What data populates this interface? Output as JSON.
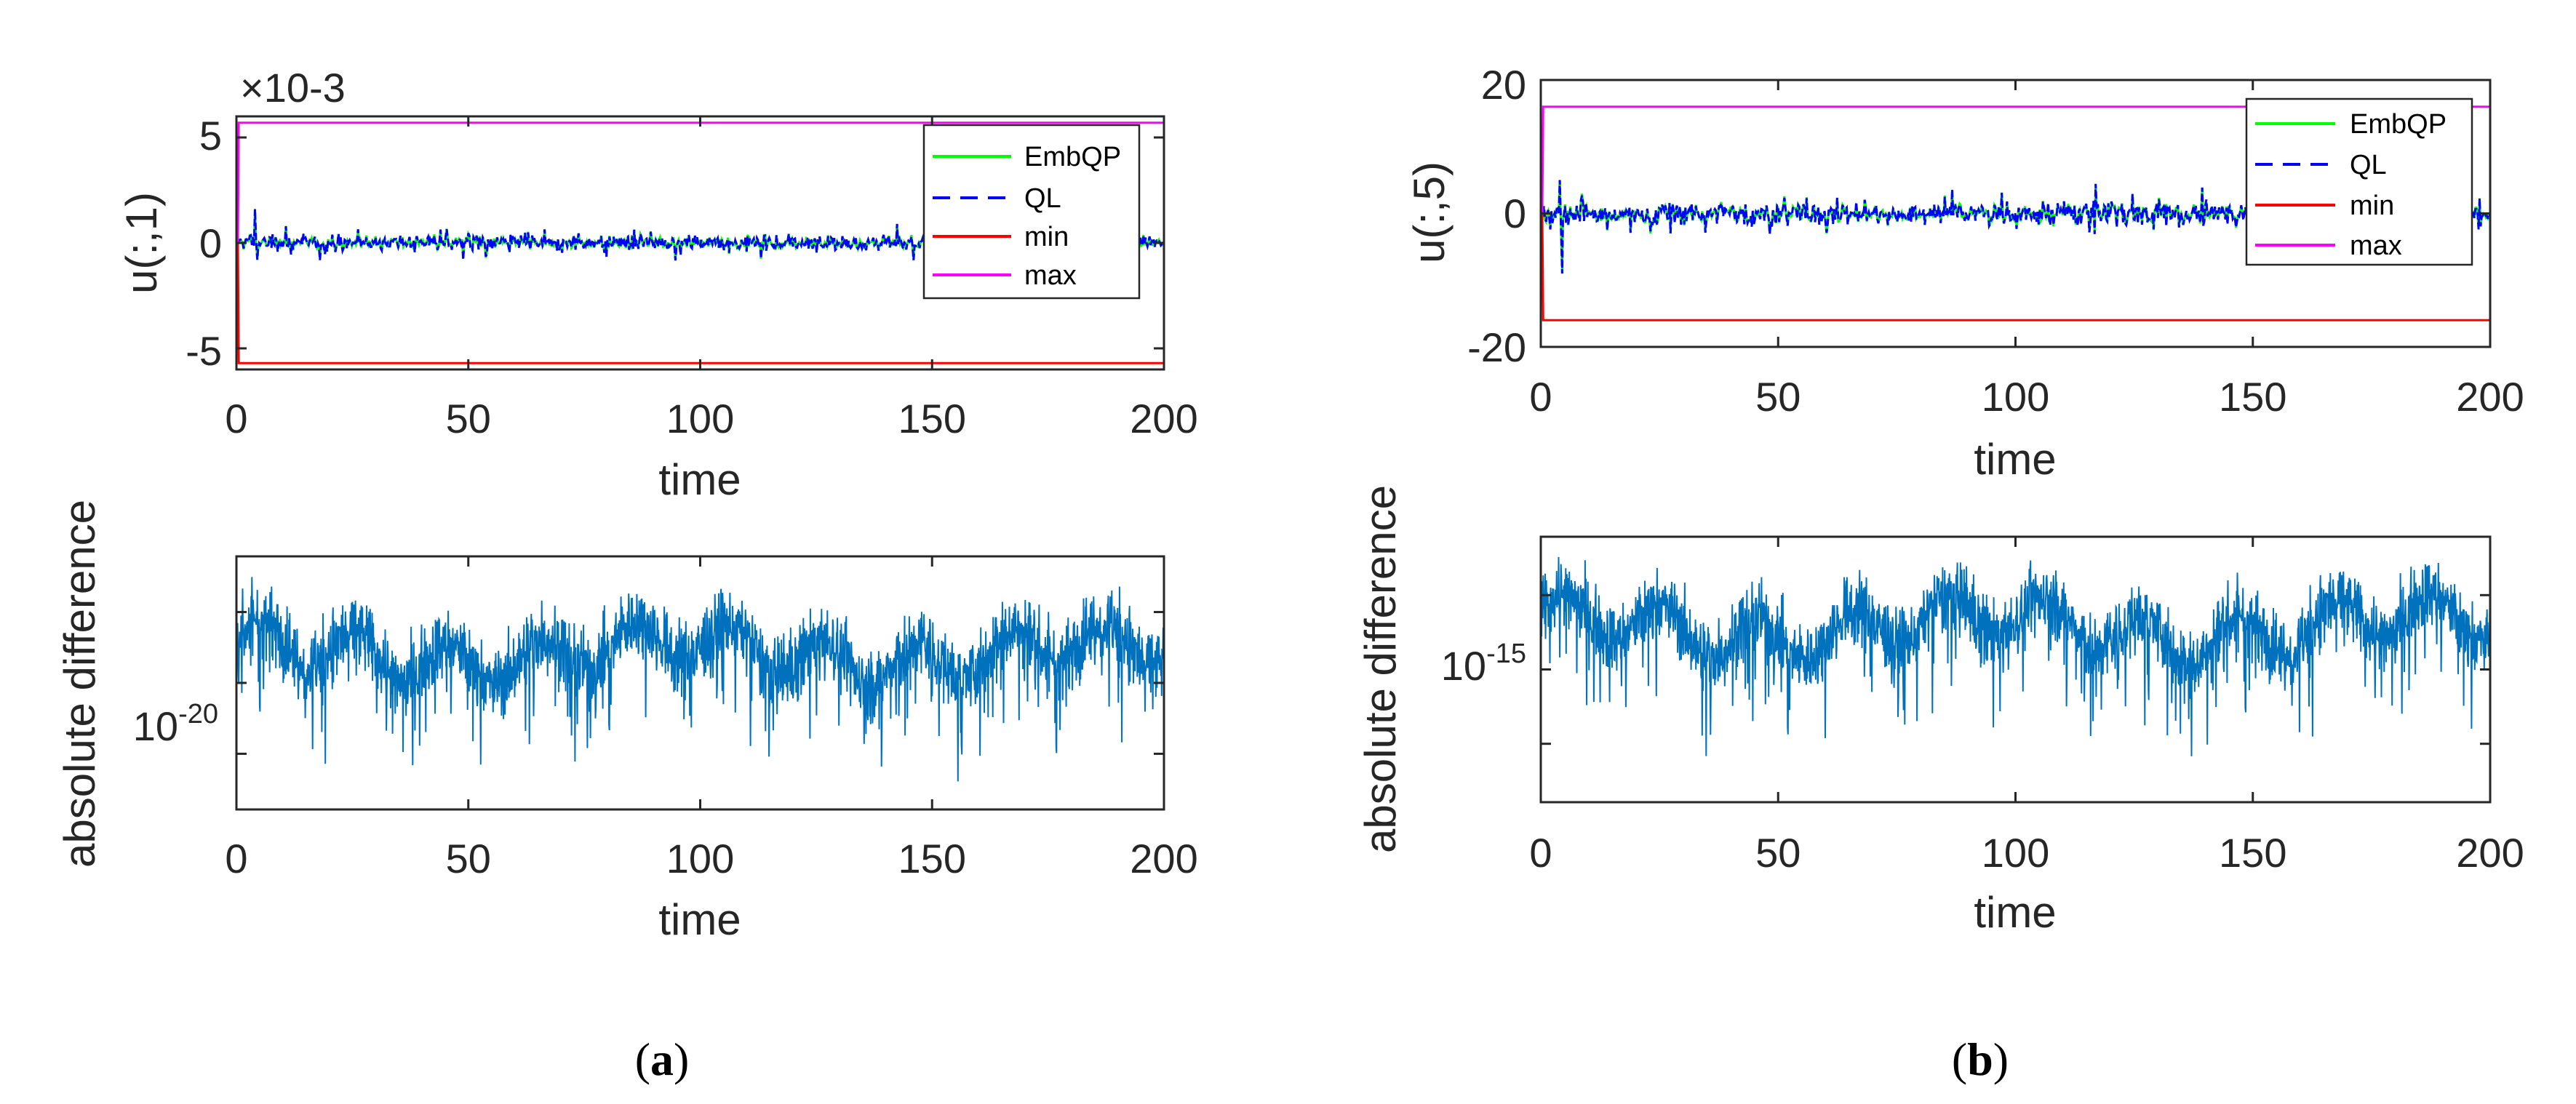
{
  "chart_data": [
    {
      "type": "line",
      "panel": "a",
      "position": "top",
      "title": "",
      "xlabel": "time",
      "ylabel": "u(:,1)",
      "y_exponent_label": "×10-3",
      "xlim": [
        0,
        200
      ],
      "ylim": [
        -6,
        6
      ],
      "xticks": [
        0,
        50,
        100,
        150,
        200
      ],
      "xtick_labels": [
        "0",
        "50",
        "100",
        "150",
        "200"
      ],
      "yticks": [
        -5,
        0,
        5
      ],
      "ytick_labels": [
        "-5",
        "0",
        "5"
      ],
      "legend": {
        "location": "top-right",
        "entries": [
          "EmbQP",
          "QL",
          "min",
          "max"
        ]
      },
      "series": [
        {
          "name": "EmbQP",
          "color": "#00ff00",
          "style": "solid",
          "description": "control trajectory oscillating near 0",
          "approx_range": [
            -0.8,
            0.9
          ],
          "initial_spike": 1.6
        },
        {
          "name": "QL",
          "color": "#0000ff",
          "style": "dashed",
          "description": "control trajectory oscillating near 0",
          "approx_range": [
            -0.8,
            0.9
          ],
          "initial_spike": 1.6
        },
        {
          "name": "min",
          "color": "#ff0000",
          "style": "solid",
          "value": -5.7
        },
        {
          "name": "max",
          "color": "#ff00ff",
          "style": "solid",
          "value": 5.7
        }
      ]
    },
    {
      "type": "line",
      "panel": "a",
      "position": "bottom",
      "title": "",
      "xlabel": "time",
      "ylabel": "absolute difference",
      "yscale": "log",
      "xlim": [
        0,
        200
      ],
      "xticks": [
        0,
        50,
        100,
        150,
        200
      ],
      "xtick_labels": [
        "0",
        "50",
        "100",
        "150",
        "200"
      ],
      "ytick_labels": [
        {
          "base": "10",
          "exponent": "-20"
        }
      ],
      "series": [
        {
          "name": "absolute difference",
          "color": "#0072bd",
          "description": "dense noisy signal around 1e-19"
        }
      ]
    },
    {
      "type": "line",
      "panel": "b",
      "position": "top",
      "title": "",
      "xlabel": "time",
      "ylabel": "u(:,5)",
      "xlim": [
        0,
        200
      ],
      "ylim": [
        -20,
        20
      ],
      "xticks": [
        0,
        50,
        100,
        150,
        200
      ],
      "xtick_labels": [
        "0",
        "50",
        "100",
        "150",
        "200"
      ],
      "yticks": [
        -20,
        0,
        20
      ],
      "ytick_labels": [
        "-20",
        "0",
        "20"
      ],
      "legend": {
        "location": "top-right",
        "entries": [
          "EmbQP",
          "QL",
          "min",
          "max"
        ]
      },
      "series": [
        {
          "name": "EmbQP",
          "color": "#00ff00",
          "style": "solid",
          "description": "control trajectory oscillating near 0",
          "approx_range": [
            -3,
            5
          ]
        },
        {
          "name": "QL",
          "color": "#0000ff",
          "style": "dashed",
          "description": "control trajectory oscillating near 0",
          "approx_range": [
            -9,
            5
          ]
        },
        {
          "name": "min",
          "color": "#ff0000",
          "style": "solid",
          "value": -16
        },
        {
          "name": "max",
          "color": "#ff00ff",
          "style": "solid",
          "value": 16
        }
      ]
    },
    {
      "type": "line",
      "panel": "b",
      "position": "bottom",
      "title": "",
      "xlabel": "time",
      "ylabel": "absolute difference",
      "yscale": "log",
      "xlim": [
        0,
        200
      ],
      "xticks": [
        0,
        50,
        100,
        150,
        200
      ],
      "xtick_labels": [
        "0",
        "50",
        "100",
        "150",
        "200"
      ],
      "ytick_labels": [
        {
          "base": "10",
          "exponent": "-15"
        }
      ],
      "series": [
        {
          "name": "absolute difference",
          "color": "#0072bd",
          "description": "dense noisy signal around 1e-15"
        }
      ]
    }
  ],
  "captions": [
    {
      "open": "(",
      "letter": "a",
      "close": ")"
    },
    {
      "open": "(",
      "letter": "b",
      "close": ")"
    }
  ]
}
